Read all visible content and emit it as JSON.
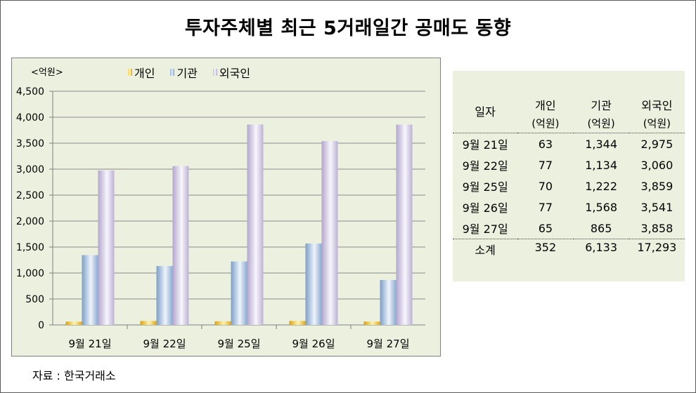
{
  "title": "투자주체별 최근 5거래일간 공매도 동향",
  "source": "자료 : 한국거래소",
  "chart_data": {
    "type": "bar",
    "unit_label": "<억원>",
    "categories": [
      "9월 21일",
      "9월 22일",
      "9월 25일",
      "9월 26일",
      "9월 27일"
    ],
    "series": [
      {
        "name": "개인",
        "values": [
          63,
          77,
          70,
          77,
          65
        ],
        "color": "#e6b422"
      },
      {
        "name": "기관",
        "values": [
          1344,
          1134,
          1222,
          1568,
          865
        ],
        "color": "#9bb6d6"
      },
      {
        "name": "외국인",
        "values": [
          2975,
          3060,
          3859,
          3541,
          3858
        ],
        "color": "#c9bfd9"
      }
    ],
    "ylim": [
      0,
      4500
    ],
    "yticks": [
      0,
      500,
      1000,
      1500,
      2000,
      2500,
      3000,
      3500,
      4000,
      4500
    ],
    "ytick_labels": [
      "0",
      "500",
      "1,000",
      "1,500",
      "2,000",
      "2,500",
      "3,000",
      "3,500",
      "4,000",
      "4,500"
    ],
    "grid": true,
    "legend_position": "top"
  },
  "table": {
    "headers": [
      "일자",
      "개인",
      "기관",
      "외국인"
    ],
    "units": [
      "(억원)",
      "(억원)",
      "(억원)"
    ],
    "rows": [
      [
        "9월 21일",
        "63",
        "1,344",
        "2,975"
      ],
      [
        "9월 22일",
        "77",
        "1,134",
        "3,060"
      ],
      [
        "9월 25일",
        "70",
        "1,222",
        "3,859"
      ],
      [
        "9월 26일",
        "77",
        "1,568",
        "3,541"
      ],
      [
        "9월 27일",
        "65",
        "865",
        "3,858"
      ]
    ],
    "total": [
      "소계",
      "352",
      "6,133",
      "17,293"
    ]
  }
}
